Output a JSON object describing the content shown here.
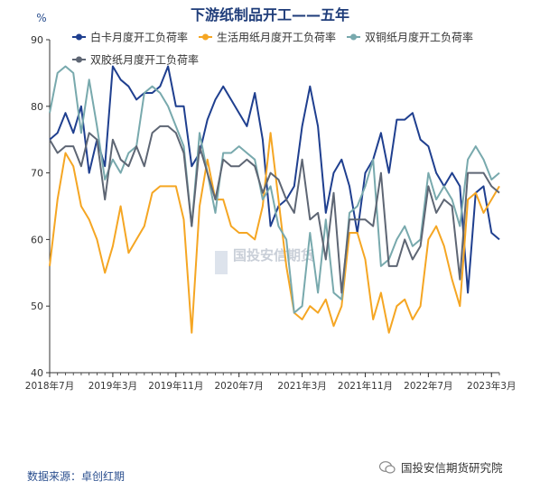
{
  "chart_data": {
    "type": "line",
    "title": "下游纸制品开工——五年",
    "yunit": "%",
    "ylim": [
      40,
      90
    ],
    "yticks": [
      40,
      50,
      60,
      70,
      80,
      90
    ],
    "xticks": [
      {
        "label": "2018年7月",
        "index": 0
      },
      {
        "label": "2019年3月",
        "index": 8
      },
      {
        "label": "2019年11月",
        "index": 16
      },
      {
        "label": "2020年7月",
        "index": 24
      },
      {
        "label": "2021年3月",
        "index": 32
      },
      {
        "label": "2021年11月",
        "index": 40
      },
      {
        "label": "2022年7月",
        "index": 48
      },
      {
        "label": "2023年3月",
        "index": 56
      }
    ],
    "series": [
      {
        "name": "白卡月度开工负荷率",
        "color": "#1f3f8f",
        "values": [
          75,
          76,
          79,
          76,
          80,
          70,
          75,
          71,
          86,
          84,
          83,
          81,
          82,
          82,
          83,
          86,
          80,
          80,
          71,
          73,
          78,
          81,
          83,
          81,
          79,
          77,
          82,
          75,
          62,
          65,
          66,
          68,
          77,
          83,
          77,
          64,
          70,
          72,
          68,
          61,
          70,
          72,
          76,
          70,
          78,
          78,
          79,
          75,
          74,
          70,
          68,
          70,
          68,
          52,
          67,
          68,
          61,
          60
        ]
      },
      {
        "name": "生活用纸月度开工负荷率",
        "color": "#f5a623",
        "values": [
          56,
          66,
          73,
          71,
          65,
          63,
          60,
          55,
          59,
          65,
          58,
          60,
          62,
          67,
          68,
          68,
          68,
          63,
          46,
          65,
          72,
          66,
          66,
          62,
          61,
          61,
          60,
          65,
          76,
          66,
          56,
          49,
          48,
          50,
          49,
          51,
          47,
          50,
          61,
          61,
          57,
          48,
          52,
          46,
          50,
          51,
          48,
          50,
          60,
          62,
          59,
          54,
          50,
          66,
          67,
          64,
          66,
          68
        ]
      },
      {
        "name": "双铜纸月度开工负荷率",
        "color": "#78a9ad",
        "values": [
          79,
          85,
          86,
          85,
          76,
          84,
          77,
          69,
          72,
          70,
          73,
          74,
          82,
          83,
          82,
          80,
          77,
          74,
          62,
          76,
          70,
          64,
          73,
          73,
          74,
          73,
          72,
          66,
          68,
          62,
          60,
          49,
          50,
          61,
          52,
          63,
          52,
          51,
          64,
          65,
          68,
          72,
          56,
          57,
          60,
          62,
          59,
          60,
          70,
          66,
          68,
          66,
          62,
          72,
          74,
          72,
          69,
          70
        ]
      },
      {
        "name": "双胶纸月度开工负荷率",
        "color": "#5e6674",
        "values": [
          75,
          73,
          74,
          74,
          71,
          76,
          75,
          66,
          75,
          72,
          71,
          74,
          71,
          76,
          77,
          77,
          76,
          73,
          62,
          74,
          70,
          66,
          72,
          71,
          71,
          72,
          71,
          67,
          70,
          69,
          66,
          64,
          72,
          63,
          64,
          57,
          67,
          52,
          63,
          63,
          63,
          62,
          70,
          56,
          56,
          60,
          57,
          59,
          68,
          64,
          66,
          65,
          54,
          70,
          70,
          70,
          68,
          67
        ]
      }
    ]
  },
  "footer": {
    "source": "数据来源：卓创红期",
    "brand": "国投安信期货研究院",
    "watermark": "国投安信期货"
  }
}
